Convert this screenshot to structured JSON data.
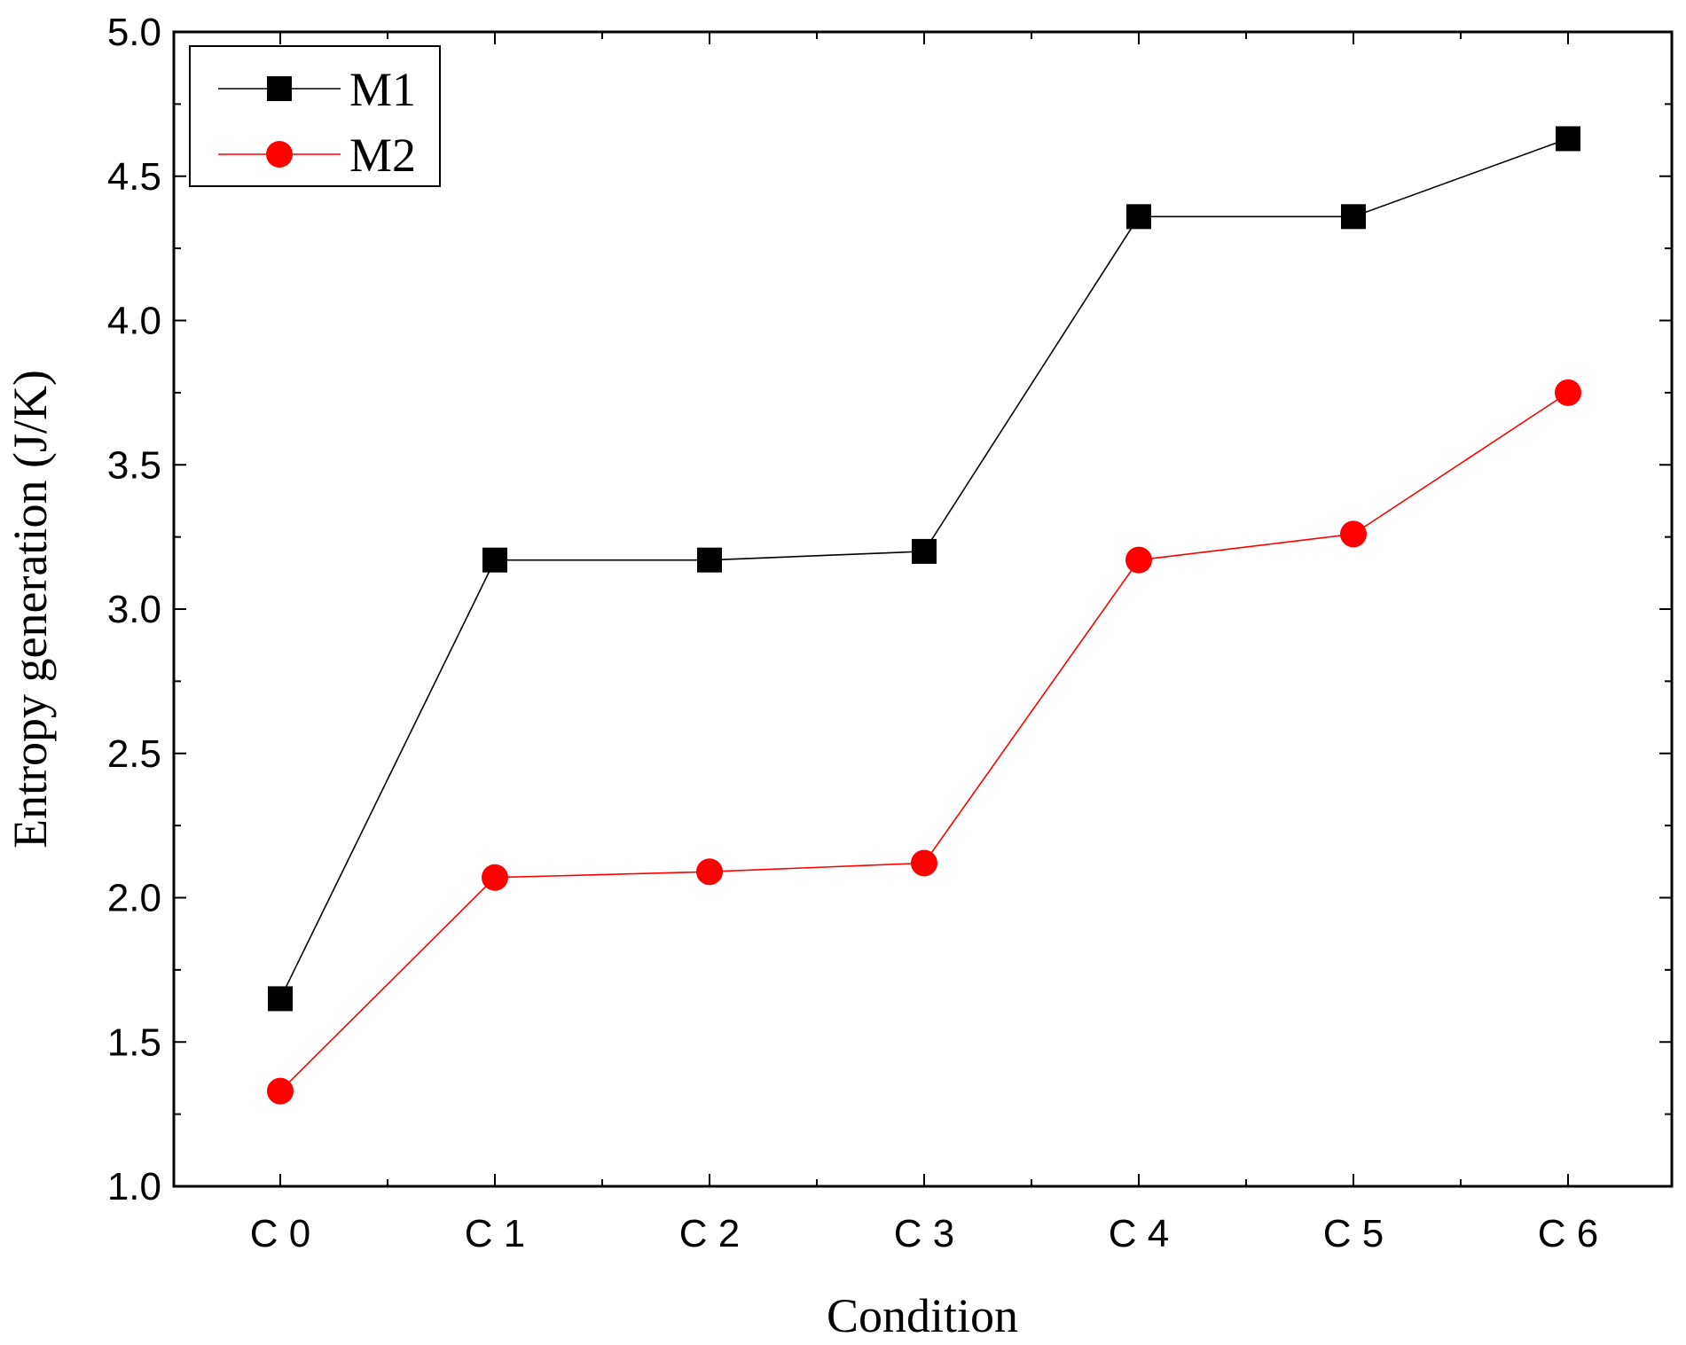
{
  "chart_data": {
    "type": "line",
    "title": "",
    "xlabel": "Condition",
    "ylabel": "Entropy generation (J/K)",
    "categories": [
      "C 0",
      "C 1",
      "C 2",
      "C 3",
      "C 4",
      "C 5",
      "C 6"
    ],
    "ylim": [
      1.0,
      5.0
    ],
    "yticks": [
      "1.0",
      "1.5",
      "2.0",
      "2.5",
      "3.0",
      "3.5",
      "4.0",
      "4.5",
      "5.0"
    ],
    "grid": false,
    "legend_position": "top-left",
    "series": [
      {
        "name": "M1",
        "color": "#000000",
        "marker": "square",
        "values": [
          1.65,
          3.17,
          3.17,
          3.2,
          4.36,
          4.36,
          4.63
        ]
      },
      {
        "name": "M2",
        "color": "#ff0000",
        "marker": "circle",
        "values": [
          1.33,
          2.07,
          2.09,
          2.12,
          3.17,
          3.26,
          3.75
        ]
      }
    ]
  }
}
